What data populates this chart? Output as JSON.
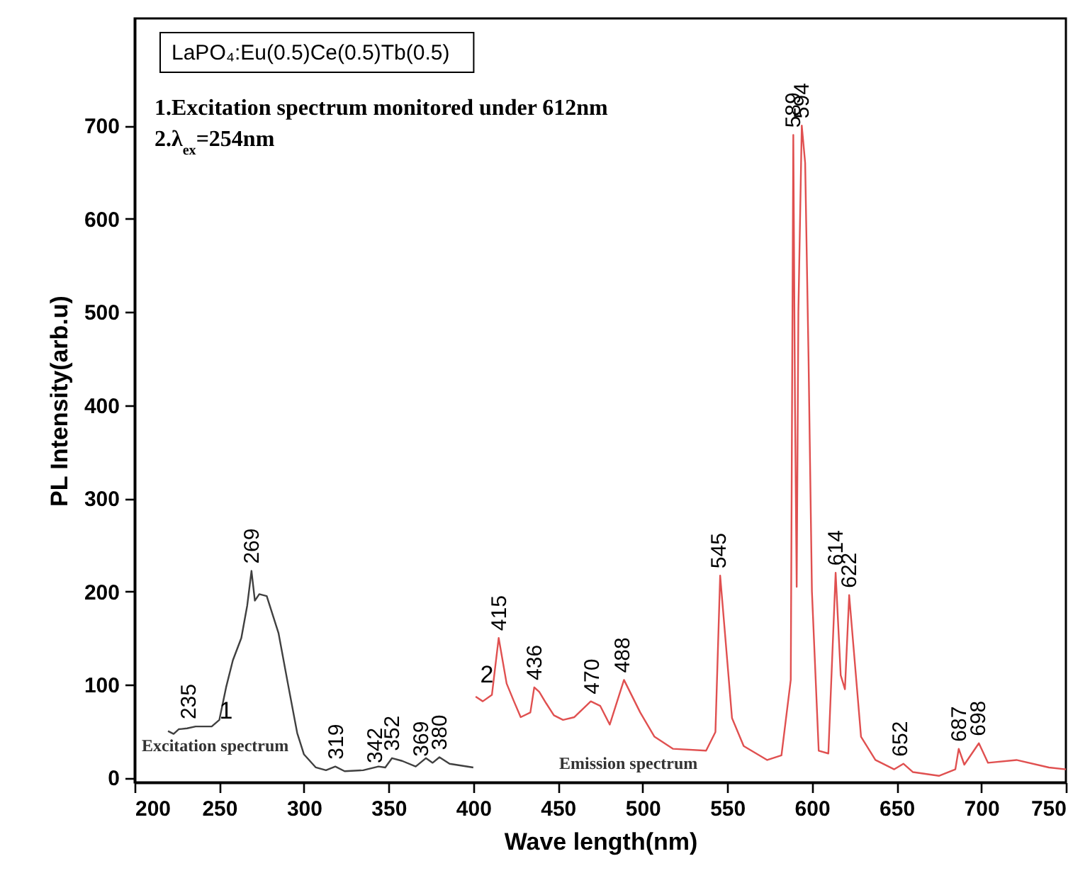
{
  "chart_data": {
    "type": "line",
    "title": "LaPO₄:Eu(0.5)Ce(0.5)Tb(0.5)",
    "xlabel": "Wave length(nm)",
    "ylabel": "PL Intensity(arb.u)",
    "xlim": [
      200,
      750
    ],
    "xticks": [
      200,
      250,
      300,
      350,
      400,
      450,
      500,
      550,
      600,
      650,
      700,
      750
    ],
    "ylim": [
      -5,
      815
    ],
    "yticks": [
      0,
      100,
      200,
      300,
      400,
      500,
      600,
      700
    ],
    "grid": false,
    "series": [
      {
        "color": "#404040",
        "x": [
          219.7,
          223,
          226,
          231,
          236,
          245.5,
          250,
          254,
          258,
          263,
          266.5,
          269,
          271,
          273.6,
          278,
          285,
          290.5,
          296,
          300,
          307,
          313,
          318.5,
          324,
          335,
          344,
          348,
          352,
          358,
          366,
          372,
          376,
          380,
          386,
          400
        ],
        "values": [
          50,
          47,
          52,
          53,
          55,
          55,
          62,
          97,
          126,
          150,
          185,
          222,
          190,
          197,
          195,
          155,
          101,
          48,
          25,
          11,
          8,
          12,
          7,
          8,
          12,
          11,
          21,
          18,
          12,
          21,
          16,
          22,
          15,
          11
        ]
      },
      {
        "color": "#e05050",
        "x": [
          401.4,
          405.6,
          411,
          415,
          419.7,
          424,
          428,
          433.7,
          436,
          439,
          443,
          447.6,
          453,
          459.7,
          469.4,
          475,
          480.6,
          489,
          498.6,
          507,
          518,
          537.5,
          543,
          545.8,
          548.6,
          552.8,
          559.7,
          573.6,
          582,
          587.5,
          589,
          590,
          591,
          592,
          594,
          596,
          598,
          600,
          604,
          609.7,
          614,
          617,
          619.5,
          622,
          629,
          637.5,
          648.6,
          654,
          659.7,
          675,
          684.7,
          686.7,
          690,
          698.6,
          704,
          720.8,
          740,
          750
        ],
        "values": [
          87,
          82,
          89,
          150,
          101,
          82,
          65,
          70,
          97,
          92,
          80,
          67,
          62,
          65,
          82,
          77,
          57,
          105,
          70,
          44,
          31,
          29,
          49,
          217,
          156,
          64,
          34,
          19,
          24,
          105,
          690,
          400,
          205,
          500,
          700,
          660,
          450,
          200,
          29,
          26,
          220,
          110,
          95,
          196,
          44,
          19,
          9,
          15,
          6,
          2,
          9,
          31,
          14,
          37,
          16,
          19,
          11,
          9
        ]
      }
    ],
    "annotations": [
      "1.Excitation spectrum monitored under 612nm",
      "2.λ$_{ex}$=254nm",
      {
        "text": "235",
        "x": 232,
        "y": 55
      },
      {
        "text": "269",
        "x": 269,
        "y": 222
      },
      {
        "text": "319",
        "x": 319,
        "y": 12
      },
      {
        "text": "342",
        "x": 342,
        "y": 8
      },
      {
        "text": "352",
        "x": 352,
        "y": 21
      },
      {
        "text": "369",
        "x": 369,
        "y": 15
      },
      {
        "text": "380",
        "x": 380,
        "y": 22
      },
      {
        "text": "415",
        "x": 415,
        "y": 150
      },
      {
        "text": "436",
        "x": 436,
        "y": 97
      },
      {
        "text": "470",
        "x": 470,
        "y": 82
      },
      {
        "text": "488",
        "x": 488,
        "y": 105
      },
      {
        "text": "545",
        "x": 545,
        "y": 217
      },
      {
        "text": "589",
        "x": 589,
        "y": 690
      },
      {
        "text": "594",
        "x": 594,
        "y": 700
      },
      {
        "text": "614",
        "x": 614,
        "y": 220
      },
      {
        "text": "622",
        "x": 622,
        "y": 196
      },
      {
        "text": "652",
        "x": 652,
        "y": 15
      },
      {
        "text": "687",
        "x": 687,
        "y": 31
      },
      {
        "text": "698",
        "x": 698,
        "y": 37
      },
      {
        "text": "1",
        "x": 254,
        "y": 71
      },
      {
        "text": "2",
        "x": 408,
        "y": 110
      },
      {
        "text": "Excitation spectrum",
        "x": 296,
        "y": 48
      },
      {
        "text": "Emission spectrum",
        "x": 537.5,
        "y": 29
      }
    ]
  }
}
